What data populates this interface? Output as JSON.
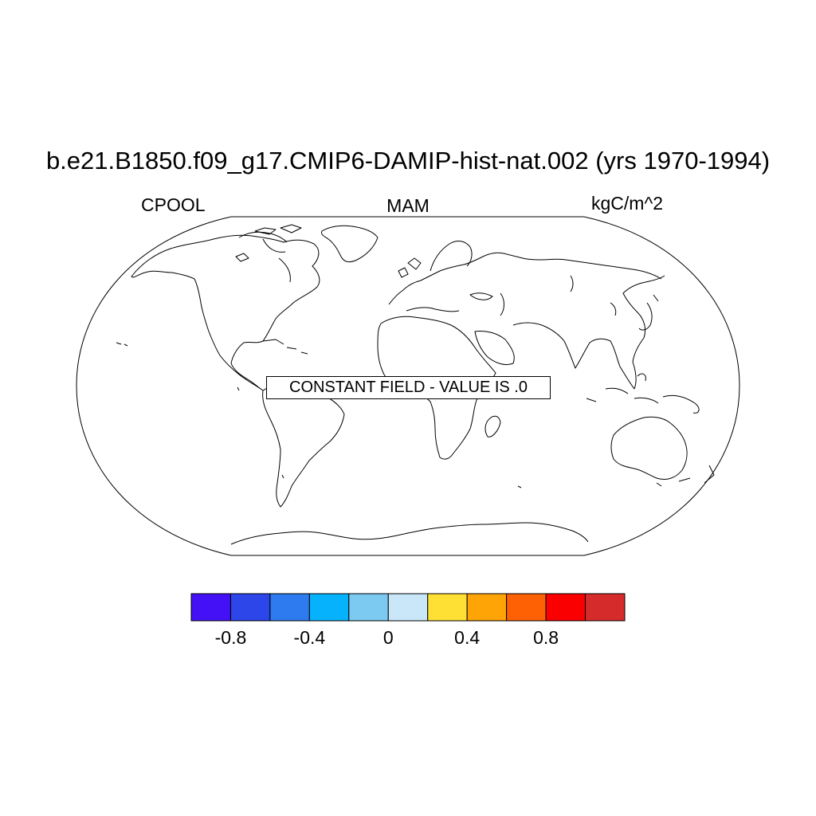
{
  "title": "b.e21.B1850.f09_g17.CMIP6-DAMIP-hist-nat.002 (yrs 1970-1994)",
  "left_label": "CPOOL",
  "center_label": "MAM",
  "right_label": "kgC/m^2",
  "map_message": "CONSTANT FIELD - VALUE IS .0",
  "colorbar": {
    "colors": [
      "#4410f5",
      "#2c46ea",
      "#2e7bef",
      "#07b2fc",
      "#7ccaf2",
      "#c9e7f8",
      "#fee035",
      "#fea407",
      "#fe6104",
      "#fa0000",
      "#d62b2b"
    ],
    "tick_labels": [
      "-0.8",
      "-0.4",
      "0",
      "0.4",
      "0.8"
    ],
    "tick_positions": [
      1,
      3,
      5,
      7,
      9
    ]
  }
}
